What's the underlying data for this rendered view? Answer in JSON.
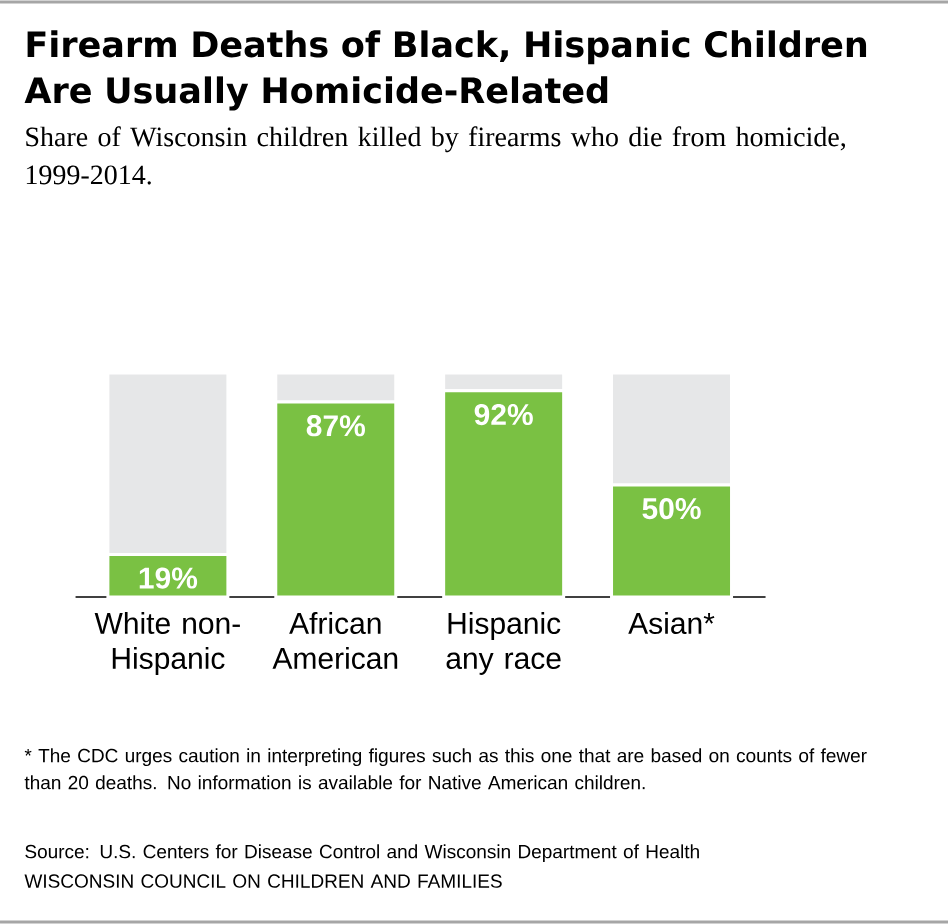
{
  "chart_data": {
    "type": "bar",
    "title": "Firearm Deaths of Black, Hispanic Children Are Usually Homicide-Related",
    "subtitle": "Share of Wisconsin children killed by firearms who die from homicide, 1999-2014.",
    "categories": [
      "White non-Hispanic",
      "African American",
      "Hispanic any race",
      "Asian*"
    ],
    "stacked": true,
    "ylim": [
      0,
      100
    ],
    "tick_labels": "x",
    "series": [
      {
        "color": "#7ac143",
        "values": [
          19,
          87,
          92,
          50
        ],
        "value_labels": [
          "19%",
          "87%",
          "92%",
          "50%"
        ]
      },
      {
        "color": "#e6e7e8",
        "values": [
          81,
          13,
          8,
          50
        ]
      }
    ],
    "annotations": [
      "* The CDC urges caution in interpreting figures such as this one that are based on counts of fewer than 20 deaths. No information is available for Native American children.",
      "Source: U.S. Centers for Disease Control and Wisconsin Department of Health",
      "WISCONSIN COUNCIL ON CHILDREN AND FAMILIES"
    ]
  }
}
